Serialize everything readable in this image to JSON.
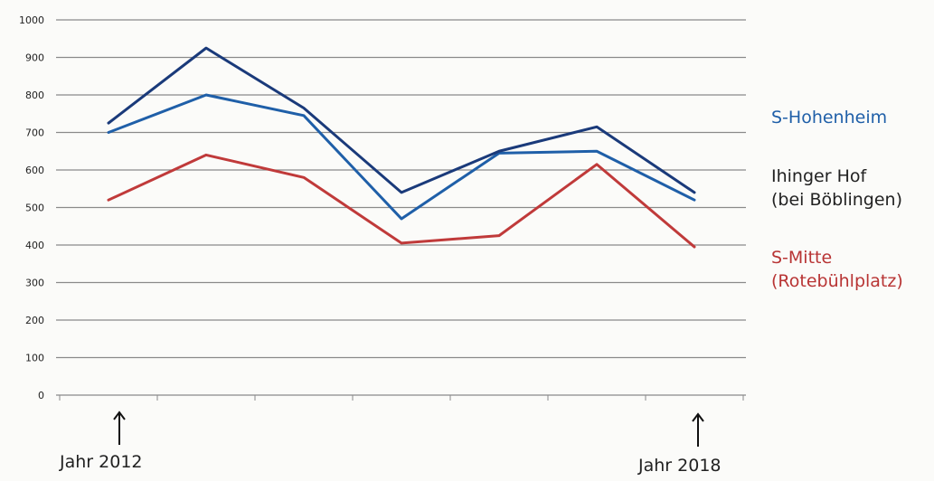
{
  "chart_data": {
    "type": "line",
    "title": "",
    "xlabel": "",
    "ylabel": "",
    "ylim": [
      0,
      1000
    ],
    "y_ticks": [
      0,
      100,
      200,
      300,
      400,
      500,
      600,
      700,
      800,
      900,
      1000
    ],
    "x_points": 7,
    "grid": true,
    "legend_placement": "right",
    "series": [
      {
        "name": "S-Hohenheim",
        "color": "#1f5fa8",
        "values": [
          700,
          800,
          745,
          470,
          645,
          650,
          520
        ]
      },
      {
        "name": "Ihinger Hof (bei Böblingen)",
        "color": "#1a3a7a",
        "values": [
          725,
          925,
          765,
          540,
          650,
          715,
          540
        ]
      },
      {
        "name": "S-Mitte (Rotebühlplatz)",
        "color": "#c03a3a",
        "values": [
          520,
          640,
          580,
          405,
          425,
          615,
          395
        ]
      }
    ],
    "annotations": [
      {
        "text": "Jahr 2012",
        "at_point": 0
      },
      {
        "text": "Jahr 2018",
        "at_point": 6
      }
    ]
  },
  "legend": [
    {
      "lines": [
        "S-Hohenheim"
      ],
      "color": "#1f5fa8"
    },
    {
      "lines": [
        "Ihinger Hof",
        "(bei Böblingen)"
      ],
      "color": "#222222"
    },
    {
      "lines": [
        "S-Mitte",
        "(Rotebühlplatz)"
      ],
      "color": "#b83434"
    }
  ]
}
